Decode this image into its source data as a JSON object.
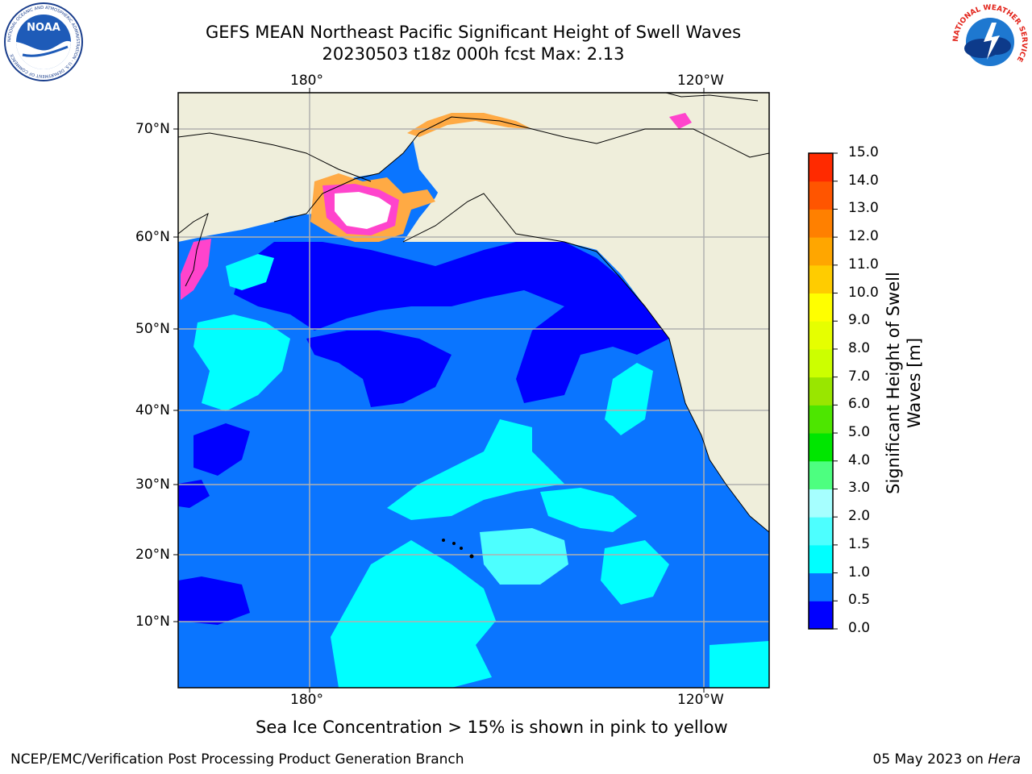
{
  "header": {
    "title_line1": "GEFS MEAN Northeast Pacific Significant Height of Swell Waves",
    "title_line2": "20230503 t18z 000h fcst   Max: 2.13"
  },
  "logos": {
    "left_text": "NOAA",
    "left_ring_text": "NATIONAL OCEANIC AND ATMOSPHERIC ADMINISTRATION · U.S. DEPARTMENT OF COMMERCE",
    "right_ring_text": "NATIONAL WEATHER SERVICE"
  },
  "map": {
    "top_lon_labels": [
      "180°",
      "120°W"
    ],
    "bottom_lon_labels": [
      "180°",
      "120°W"
    ],
    "lat_labels": [
      "70°N",
      "60°N",
      "50°N",
      "40°N",
      "30°N",
      "20°N",
      "10°N"
    ],
    "gridlines": true,
    "colors": {
      "land": "#efeedb",
      "coast": "#000000",
      "grid": "#b0b0b0",
      "ice_pink": "#ff44cc",
      "ice_orange": "#ffaa44",
      "ice_white": "#ffffff"
    }
  },
  "colorbar": {
    "label_line1": "Significant Height of Swell",
    "label_line2": "Waves [m]",
    "ticks": [
      "15.0",
      "14.0",
      "13.0",
      "12.0",
      "11.0",
      "10.0",
      "9.0",
      "8.0",
      "7.0",
      "6.0",
      "5.0",
      "4.0",
      "3.0",
      "2.0",
      "1.5",
      "1.0",
      "0.5",
      "0.0"
    ],
    "levels": [
      0.0,
      0.5,
      1.0,
      1.5,
      2.0,
      3.0,
      4.0,
      5.0,
      6.0,
      7.0,
      8.0,
      9.0,
      10.0,
      11.0,
      12.0,
      13.0,
      14.0,
      15.0
    ],
    "colors": [
      "#0000ff",
      "#0a75ff",
      "#00ffff",
      "#4dffff",
      "#a6ffff",
      "#4dff80",
      "#00e600",
      "#4de600",
      "#99e600",
      "#ccff00",
      "#e6ff00",
      "#ffff00",
      "#ffcc00",
      "#ffa600",
      "#ff8000",
      "#ff5500",
      "#ff2a00",
      "#ff0000"
    ]
  },
  "caption": "Sea Ice Concentration > 15% is shown in pink to yellow",
  "footer": {
    "left": "NCEP/EMC/Verification Post Processing Product Generation Branch",
    "right_prefix": "05 May 2023 on ",
    "right_host": "Hera"
  }
}
